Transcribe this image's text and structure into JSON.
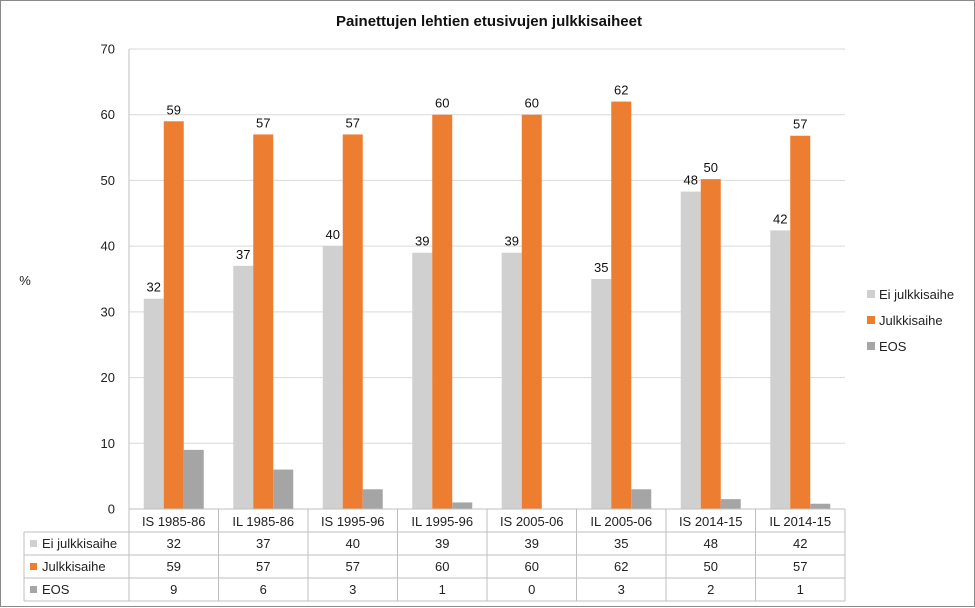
{
  "chart_data": {
    "type": "bar",
    "title": "Painettujen lehtien etusivujen julkkisaiheet",
    "ylabel": "%",
    "xlabel": "",
    "ylim": [
      0,
      70
    ],
    "yticks": [
      0,
      10,
      20,
      30,
      40,
      50,
      60,
      70
    ],
    "grid": true,
    "legend_position": "right",
    "categories": [
      "IS 1985-86",
      "IL 1985-86",
      "IS 1995-96",
      "IL 1995-96",
      "IS 2005-06",
      "IL 2005-06",
      "IS 2014-15",
      "IL 2014-15"
    ],
    "series": [
      {
        "name": "Ei julkkisaihe",
        "color": "#d0d0d0",
        "values": [
          32,
          37,
          40,
          39,
          39,
          35,
          48.3,
          42.4
        ],
        "labels": [
          "32",
          "37",
          "40",
          "39",
          "39",
          "35",
          "48",
          "42"
        ],
        "table_values": [
          "32",
          "37",
          "40",
          "39",
          "39",
          "35",
          "48",
          "42"
        ],
        "show_labels": true
      },
      {
        "name": "Julkkisaihe",
        "color": "#ed7d31",
        "values": [
          59,
          57,
          57,
          60,
          60,
          62,
          50.2,
          56.8
        ],
        "labels": [
          "59",
          "57",
          "57",
          "60",
          "60",
          "62",
          "50",
          "57"
        ],
        "table_values": [
          "59",
          "57",
          "57",
          "60",
          "60",
          "62",
          "50",
          "57"
        ],
        "show_labels": true
      },
      {
        "name": "EOS",
        "color": "#a5a5a5",
        "values": [
          9,
          6,
          3,
          1,
          0,
          3,
          1.5,
          0.8
        ],
        "labels": [
          "9",
          "6",
          "3",
          "1",
          "0",
          "3",
          "2",
          "1"
        ],
        "table_values": [
          "9",
          "6",
          "3",
          "1",
          "0",
          "3",
          "2",
          "1"
        ],
        "show_labels": false
      }
    ]
  }
}
